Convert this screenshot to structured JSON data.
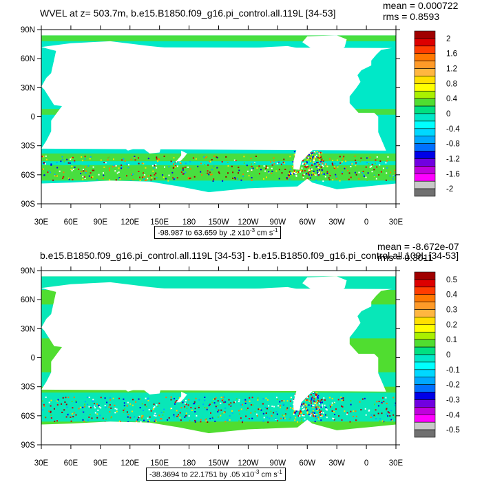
{
  "panels": [
    {
      "title": "WVEL at z= 503.7m, b.e15.B1850.f09_g16.pi_control.all.119L [34-53]",
      "mean": "mean = 0.000722",
      "rms": "rms = 0.8593",
      "range_note": {
        "prefix": "-98.987 to 63.659 by .2 x10",
        "exp": "-3",
        "unit": " cm s",
        "unit_exp": "-1"
      },
      "colorbar": {
        "labels": [
          "2",
          "1.6",
          "1.2",
          "0.8",
          "0.4",
          "0",
          "-0.4",
          "-0.8",
          "-1.2",
          "-1.6",
          "-2"
        ],
        "colors": [
          "#a00000",
          "#dd0000",
          "#ff3c00",
          "#ff7800",
          "#ff9a28",
          "#ffb640",
          "#ffe000",
          "#ffff00",
          "#aaf000",
          "#50dd30",
          "#00e080",
          "#00e8c8",
          "#00ffff",
          "#00d8ff",
          "#00a8ff",
          "#0070ff",
          "#0000e8",
          "#7000e0",
          "#c000dd",
          "#ff00ff",
          "#c8c8c8",
          "#707070"
        ]
      }
    },
    {
      "title": "b.e15.B1850.f09_g16.pi_control.all.119L [34-53] - b.e15.B1850.f09_g16.pi_control.all.109L [34-53]",
      "mean": "mean = -8.672e-07",
      "rms": "rms = 0.3011",
      "range_note": {
        "prefix": "-38.3694 to 22.1751 by .05 x10",
        "exp": "-3",
        "unit": " cm s",
        "unit_exp": "-1"
      },
      "colorbar": {
        "labels": [
          "0.5",
          "0.4",
          "0.3",
          "0.2",
          "0.1",
          "0",
          "-0.1",
          "-0.2",
          "-0.3",
          "-0.4",
          "-0.5"
        ],
        "colors": [
          "#a00000",
          "#dd0000",
          "#ff3c00",
          "#ff7800",
          "#ff9a28",
          "#ffb640",
          "#ffe000",
          "#ffff00",
          "#aaf000",
          "#50dd30",
          "#00e080",
          "#00e8c8",
          "#00ffff",
          "#00d8ff",
          "#00a8ff",
          "#0070ff",
          "#0000e8",
          "#7000e0",
          "#c000dd",
          "#ff00ff",
          "#c8c8c8",
          "#707070"
        ]
      }
    }
  ],
  "chart_data": [
    {
      "type": "heatmap",
      "title": "WVEL at z= 503.7m, b.e15.B1850.f09_g16.pi_control.all.119L [34-53]",
      "x_tick_labels": [
        "30E",
        "60E",
        "90E",
        "120E",
        "150E",
        "180",
        "150W",
        "120W",
        "90W",
        "60W",
        "30W",
        "0",
        "30E"
      ],
      "y_tick_labels": [
        "90N",
        "60N",
        "30N",
        "0",
        "30S",
        "60S",
        "90S"
      ],
      "xlim": [
        30,
        390
      ],
      "ylim": [
        -90,
        90
      ],
      "colorbar_levels": [
        2,
        1.6,
        1.2,
        0.8,
        0.4,
        0,
        -0.4,
        -0.8,
        -1.2,
        -1.6,
        -2
      ],
      "mean": 0.000722,
      "rms": 0.8593,
      "range": [
        -98.987,
        63.659
      ],
      "contour_interval": 0.2,
      "scale": "x10^-3 cm s^-1",
      "dominant_field_colors": [
        "#00e8c8",
        "#50dd30"
      ]
    },
    {
      "type": "heatmap",
      "title": "b.e15.B1850.f09_g16.pi_control.all.119L [34-53] - b.e15.B1850.f09_g16.pi_control.all.109L [34-53]",
      "x_tick_labels": [
        "30E",
        "60E",
        "90E",
        "120E",
        "150E",
        "180",
        "150W",
        "120W",
        "90W",
        "60W",
        "30W",
        "0",
        "30E"
      ],
      "y_tick_labels": [
        "90N",
        "60N",
        "30N",
        "0",
        "30S",
        "60S",
        "90S"
      ],
      "xlim": [
        30,
        390
      ],
      "ylim": [
        -90,
        90
      ],
      "colorbar_levels": [
        0.5,
        0.4,
        0.3,
        0.2,
        0.1,
        0,
        -0.1,
        -0.2,
        -0.3,
        -0.4,
        -0.5
      ],
      "mean": -8.672e-07,
      "rms": 0.3011,
      "range": [
        -38.3694,
        22.1751
      ],
      "contour_interval": 0.05,
      "scale": "x10^-3 cm s^-1",
      "dominant_field_colors": [
        "#50dd30",
        "#00e8c8"
      ]
    }
  ]
}
